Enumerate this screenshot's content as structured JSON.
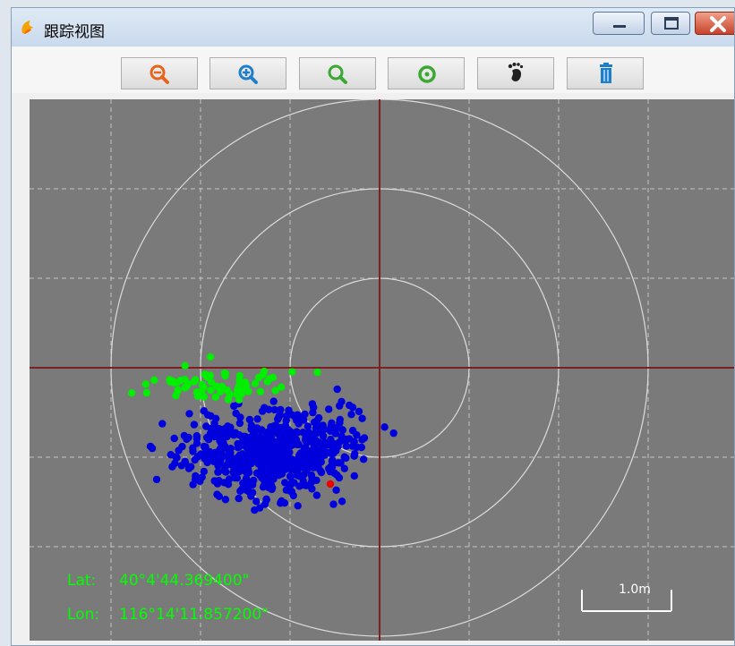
{
  "window": {
    "title": "跟踪视图",
    "controls": [
      "minimize",
      "maximize",
      "close"
    ]
  },
  "toolbar": {
    "buttons": [
      {
        "name": "zoom-out",
        "icon": "magnifier-minus-icon",
        "color": "#e8641e"
      },
      {
        "name": "zoom-in",
        "icon": "magnifier-plus-icon",
        "color": "#1e7fc8"
      },
      {
        "name": "zoom-fit",
        "icon": "magnifier-icon",
        "color": "#3aa832"
      },
      {
        "name": "center",
        "icon": "target-icon",
        "color": "#3aa832"
      },
      {
        "name": "track",
        "icon": "footprint-icon",
        "color": "#222222"
      },
      {
        "name": "clear",
        "icon": "trash-icon",
        "color": "#1e7fc8"
      }
    ]
  },
  "view": {
    "background": "#7a7a7a",
    "grid": "dashed",
    "crosshair_color": "#7a2020",
    "rings": 3,
    "point_colors": {
      "blue": "#0000dd",
      "green": "#00ee00",
      "red": "#ee0000"
    }
  },
  "readout": {
    "lat_label": "Lat:",
    "lat_value": "40°4'44.369400\"",
    "lon_label": "Lon:",
    "lon_value": "116°14'11.857200\""
  },
  "scale_bar": {
    "label": "1.0m"
  }
}
